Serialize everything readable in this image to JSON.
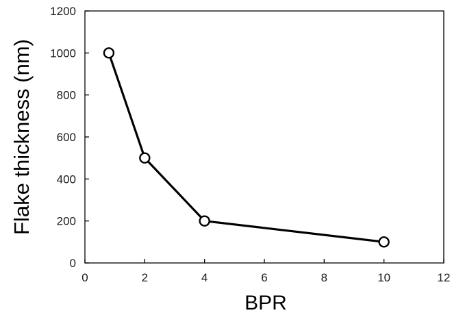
{
  "chart_data": {
    "type": "line",
    "title": "",
    "xlabel": "BPR",
    "ylabel": "Flake thickness (nm)",
    "xlim": [
      0,
      12
    ],
    "ylim": [
      0,
      1200
    ],
    "x_ticks": [
      0,
      2,
      4,
      6,
      8,
      10,
      12
    ],
    "y_ticks": [
      0,
      200,
      400,
      600,
      800,
      1000,
      1200
    ],
    "x_tick_labels": [
      "0",
      "2",
      "4",
      "6",
      "8",
      "10",
      "12"
    ],
    "y_tick_labels": [
      "0",
      "200",
      "400",
      "600",
      "800",
      "1000",
      "1200"
    ],
    "grid": false,
    "legend": "none",
    "marker": "open-circle",
    "series": [
      {
        "x": [
          0.8,
          2,
          4,
          10
        ],
        "y": [
          1000,
          500,
          200,
          100
        ],
        "color": "#000000"
      }
    ]
  }
}
